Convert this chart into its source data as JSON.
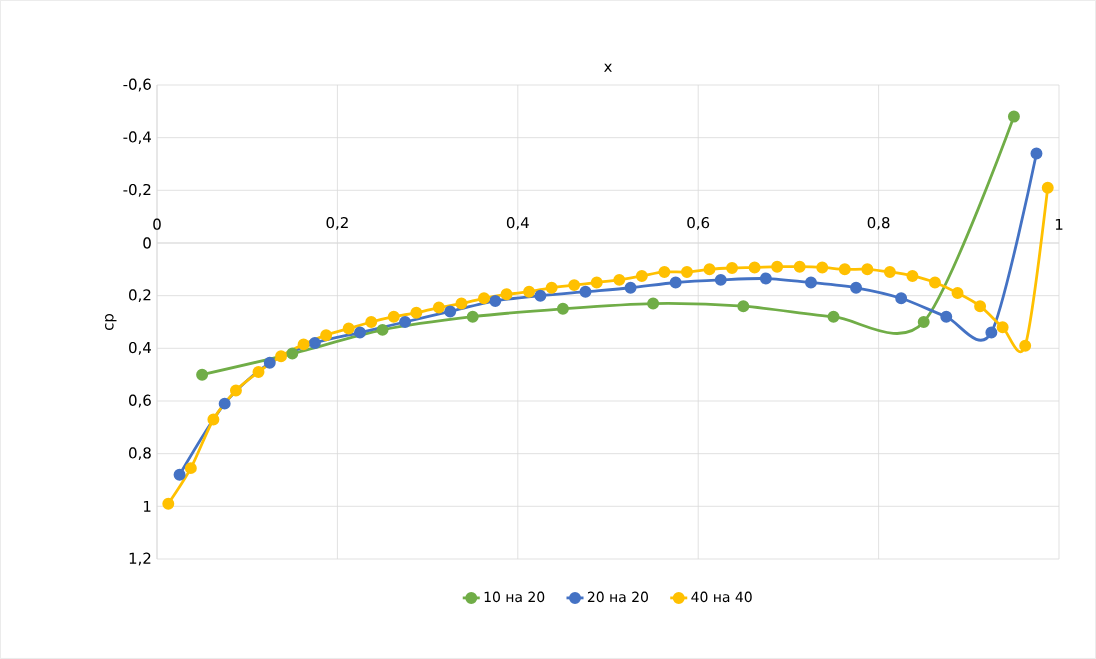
{
  "chart_data": {
    "type": "line",
    "xlabel": "x",
    "ylabel": "cp",
    "xlim": [
      0,
      1
    ],
    "ylim": [
      1.2,
      -0.6
    ],
    "xticks": [
      0,
      {
        "value": 0.2,
        "label": "0,2"
      },
      {
        "value": 0.4,
        "label": "0,4"
      },
      {
        "value": 0.6,
        "label": "0,6"
      },
      {
        "value": 0.8,
        "label": "0,8"
      },
      1
    ],
    "yticks": [
      {
        "value": -0.6,
        "label": "-0,6"
      },
      {
        "value": -0.4,
        "label": "-0,4"
      },
      {
        "value": -0.2,
        "label": "-0,2"
      },
      0,
      {
        "value": 0.2,
        "label": "0,2"
      },
      {
        "value": 0.4,
        "label": "0,4"
      },
      {
        "value": 0.6,
        "label": "0,6"
      },
      {
        "value": 0.8,
        "label": "0,8"
      },
      1,
      {
        "value": 1.2,
        "label": "1,2"
      }
    ],
    "grid": true,
    "legend": "bottom",
    "marker": "circle",
    "line_style": "solid",
    "series": [
      {
        "name": "10 на 20",
        "color": "#70ad47",
        "x": [
          0.05,
          0.15,
          0.25,
          0.35,
          0.45,
          0.55,
          0.65,
          0.75,
          0.85,
          0.95
        ],
        "values": [
          0.5,
          0.42,
          0.33,
          0.28,
          0.25,
          0.23,
          0.24,
          0.28,
          0.3,
          -0.48
        ]
      },
      {
        "name": "20 на 20",
        "color": "#4472c4",
        "x": [
          0.025,
          0.075,
          0.125,
          0.175,
          0.225,
          0.275,
          0.325,
          0.375,
          0.425,
          0.475,
          0.525,
          0.575,
          0.625,
          0.675,
          0.725,
          0.775,
          0.825,
          0.875,
          0.925,
          0.975
        ],
        "values": [
          0.88,
          0.61,
          0.455,
          0.38,
          0.34,
          0.3,
          0.26,
          0.22,
          0.2,
          0.185,
          0.17,
          0.15,
          0.14,
          0.135,
          0.15,
          0.17,
          0.21,
          0.28,
          0.34,
          -0.34
        ]
      },
      {
        "name": "40 на 40",
        "color": "#ffc000",
        "x": [
          0.0125,
          0.0375,
          0.0625,
          0.0875,
          0.1125,
          0.1375,
          0.1625,
          0.1875,
          0.2125,
          0.2375,
          0.2625,
          0.2875,
          0.3125,
          0.3375,
          0.3625,
          0.3875,
          0.4125,
          0.4375,
          0.4625,
          0.4875,
          0.5125,
          0.5375,
          0.5625,
          0.5875,
          0.6125,
          0.6375,
          0.6625,
          0.6875,
          0.7125,
          0.7375,
          0.7625,
          0.7875,
          0.8125,
          0.8375,
          0.8625,
          0.8875,
          0.9125,
          0.9375,
          0.9625,
          0.9875
        ],
        "values": [
          0.99,
          0.855,
          0.67,
          0.56,
          0.49,
          0.43,
          0.385,
          0.35,
          0.325,
          0.3,
          0.28,
          0.265,
          0.245,
          0.23,
          0.21,
          0.195,
          0.185,
          0.17,
          0.16,
          0.15,
          0.14,
          0.125,
          0.11,
          0.11,
          0.1,
          0.095,
          0.093,
          0.09,
          0.09,
          0.093,
          0.1,
          0.1,
          0.11,
          0.125,
          0.15,
          0.19,
          0.24,
          0.32,
          0.39,
          -0.21
        ]
      }
    ]
  }
}
